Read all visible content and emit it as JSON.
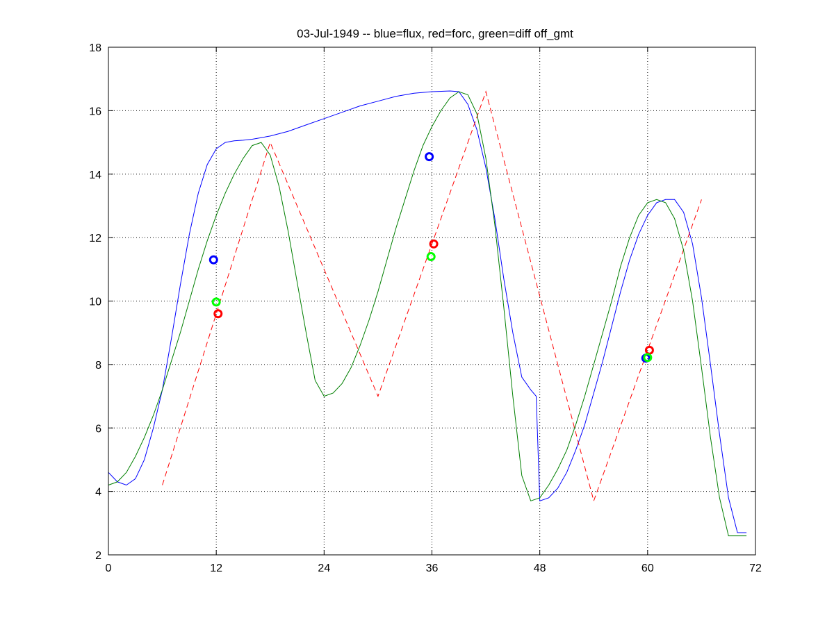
{
  "chart_data": {
    "type": "line",
    "title": "03-Jul-1949 -- blue=flux, red=forc, green=diff off_gmt",
    "xlabel": "",
    "ylabel": "",
    "xlim": [
      0,
      72
    ],
    "ylim": [
      2,
      18
    ],
    "xticks": [
      0,
      12,
      24,
      36,
      48,
      60,
      72
    ],
    "yticks": [
      2,
      4,
      6,
      8,
      10,
      12,
      14,
      16,
      18
    ],
    "grid": true,
    "grid_x": [
      12,
      24,
      36,
      48,
      60
    ],
    "colors": {
      "flux": "#0000ff",
      "forc": "#ff0000",
      "diff": "#007f00",
      "diff_marker": "#00ff00"
    },
    "series": [
      {
        "key": "flux",
        "style": "solid",
        "x": [
          0,
          1,
          2,
          3,
          4,
          5,
          6,
          7,
          8,
          9,
          10,
          11,
          12,
          13,
          14,
          15,
          16,
          17,
          18,
          20,
          22,
          24,
          26,
          28,
          30,
          32,
          34,
          36,
          38,
          39,
          40,
          41,
          42,
          43,
          44,
          45,
          46,
          47,
          47.6,
          48,
          49,
          50,
          51,
          52,
          53,
          54,
          55,
          56,
          57,
          58,
          59,
          60,
          61,
          62,
          63,
          64,
          65,
          66,
          67,
          68,
          69,
          70,
          71
        ],
        "y": [
          4.6,
          4.3,
          4.2,
          4.4,
          5.0,
          6.0,
          7.2,
          8.8,
          10.5,
          12.1,
          13.4,
          14.3,
          14.8,
          15.0,
          15.05,
          15.07,
          15.1,
          15.15,
          15.2,
          15.35,
          15.55,
          15.75,
          15.95,
          16.15,
          16.3,
          16.45,
          16.55,
          16.6,
          16.62,
          16.6,
          16.2,
          15.4,
          14.2,
          12.6,
          10.7,
          9.0,
          7.6,
          7.2,
          7.0,
          3.7,
          3.8,
          4.1,
          4.6,
          5.3,
          6.1,
          7.1,
          8.1,
          9.2,
          10.3,
          11.3,
          12.1,
          12.7,
          13.1,
          13.2,
          13.2,
          12.8,
          11.8,
          10.1,
          8.0,
          5.8,
          3.8,
          2.7,
          2.7
        ]
      },
      {
        "key": "forc",
        "style": "dashed",
        "x": [
          6,
          18,
          30,
          42,
          54,
          66
        ],
        "y": [
          4.2,
          15.0,
          7.0,
          16.6,
          3.7,
          13.2
        ]
      },
      {
        "key": "diff",
        "style": "solid",
        "x": [
          0,
          1,
          2,
          3,
          4,
          5,
          6,
          7,
          8,
          9,
          10,
          11,
          12,
          13,
          14,
          15,
          16,
          17,
          18,
          19,
          20,
          21,
          22,
          23,
          24,
          25,
          26,
          27,
          28,
          29,
          30,
          31,
          32,
          33,
          34,
          35,
          36,
          37,
          38,
          39,
          40,
          41,
          42,
          43,
          44,
          45,
          46,
          47,
          48,
          49,
          50,
          51,
          52,
          53,
          54,
          55,
          56,
          57,
          58,
          59,
          60,
          61,
          62,
          63,
          64,
          65,
          66,
          67,
          68,
          69,
          70,
          71
        ],
        "y": [
          4.2,
          4.3,
          4.6,
          5.1,
          5.7,
          6.4,
          7.2,
          8.1,
          9.0,
          10.0,
          11.0,
          11.9,
          12.7,
          13.4,
          14.0,
          14.5,
          14.9,
          15.0,
          14.6,
          13.6,
          12.2,
          10.6,
          9.0,
          7.5,
          7.0,
          7.1,
          7.4,
          7.9,
          8.6,
          9.4,
          10.3,
          11.3,
          12.3,
          13.2,
          14.1,
          14.9,
          15.5,
          16.0,
          16.4,
          16.6,
          16.5,
          15.9,
          14.5,
          12.4,
          9.8,
          7.0,
          4.5,
          3.7,
          3.8,
          4.2,
          4.7,
          5.3,
          6.1,
          7.0,
          8.0,
          9.0,
          10.0,
          11.1,
          12.0,
          12.7,
          13.1,
          13.2,
          13.1,
          12.6,
          11.6,
          10.0,
          7.9,
          5.7,
          3.8,
          2.6,
          2.6,
          2.6
        ]
      }
    ],
    "markers": [
      {
        "key": "flux",
        "x": 11.7,
        "y": 11.3
      },
      {
        "key": "flux",
        "x": 35.7,
        "y": 14.55
      },
      {
        "key": "flux",
        "x": 59.8,
        "y": 8.2
      },
      {
        "key": "forc",
        "x": 12.2,
        "y": 9.6
      },
      {
        "key": "forc",
        "x": 36.2,
        "y": 11.8
      },
      {
        "key": "forc",
        "x": 60.2,
        "y": 8.45
      },
      {
        "key": "diff",
        "x": 12.0,
        "y": 9.97
      },
      {
        "key": "diff",
        "x": 35.9,
        "y": 11.4
      },
      {
        "key": "diff",
        "x": 60.0,
        "y": 8.22
      }
    ]
  }
}
